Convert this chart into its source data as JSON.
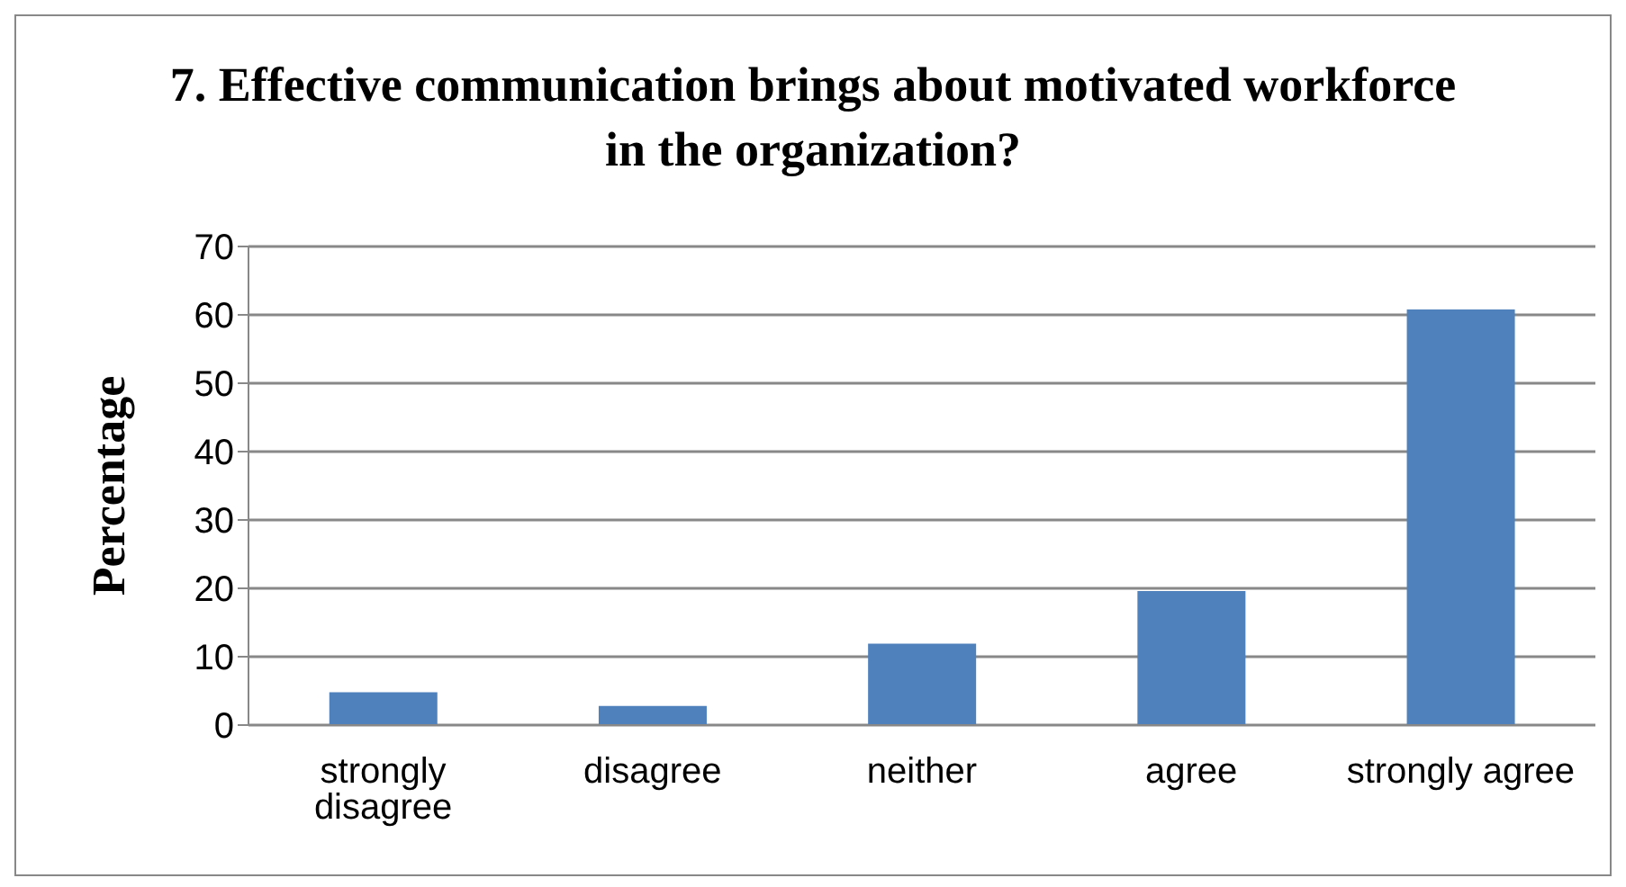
{
  "chart_data": {
    "type": "bar",
    "title": "7. Effective communication brings about motivated workforce in the organization?",
    "ylabel": "Percentage",
    "categories": [
      "strongly disagree",
      "disagree",
      "neither",
      "agree",
      "strongly agree"
    ],
    "values": [
      4.8,
      2.8,
      11.9,
      19.6,
      60.8
    ],
    "color": "#4f81bd",
    "ylim": [
      0,
      70
    ],
    "yticks": [
      0,
      10,
      20,
      30,
      40,
      50,
      60,
      70
    ],
    "grid": "y",
    "legend": false
  }
}
